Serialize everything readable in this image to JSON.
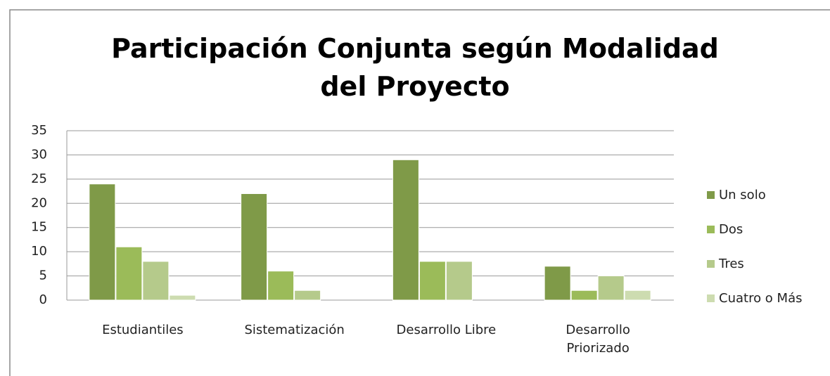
{
  "chart_data": {
    "type": "bar",
    "title": "Participación Conjunta según Modalidad del Proyecto",
    "categories": [
      "Estudiantiles",
      "Sistematización",
      "Desarrollo Libre",
      "Desarrollo Priorizado"
    ],
    "series": [
      {
        "name": "Un solo",
        "color": "#7f9a48",
        "values": [
          24,
          22,
          29,
          7
        ]
      },
      {
        "name": "Dos",
        "color": "#9bbb59",
        "values": [
          11,
          6,
          8,
          2
        ]
      },
      {
        "name": "Tres",
        "color": "#b5ca8b",
        "values": [
          8,
          2,
          8,
          5
        ]
      },
      {
        "name": "Cuatro o Más",
        "color": "#cddcb0",
        "values": [
          1,
          0,
          0,
          2
        ]
      }
    ],
    "ylim": [
      0,
      35
    ],
    "yticks": [
      0,
      5,
      10,
      15,
      20,
      25,
      30,
      35
    ],
    "grid": true,
    "legend": "right"
  }
}
